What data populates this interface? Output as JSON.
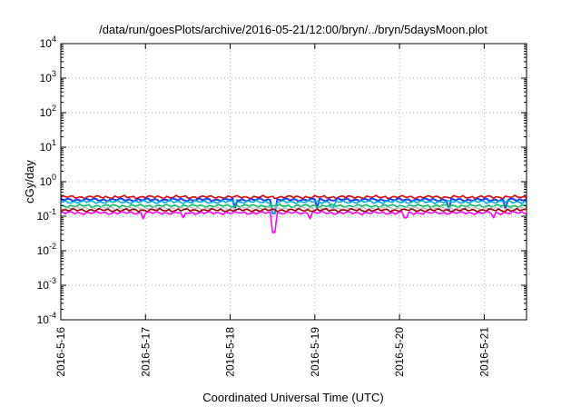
{
  "chart_data": {
    "type": "line",
    "title": "/data/run/goesPlots/archive/2016-05-21/12:00/bryn/../bryn/5daysMoon.plot",
    "xlabel": "Coordinated Universal Time (UTC)",
    "ylabel": "cGy/day",
    "yscale": "log",
    "ylim": [
      0.0001,
      10000
    ],
    "xlim": [
      "2016-05-16T00:00",
      "2016-05-21T12:00"
    ],
    "grid": true,
    "legend": "none",
    "x_ticks": [
      "2016-5-16",
      "2016-5-17",
      "2016-5-18",
      "2016-5-19",
      "2016-5-20",
      "2016-5-21"
    ],
    "y_ticks": [
      {
        "value": 0.0001,
        "base": "10",
        "exp": "-4"
      },
      {
        "value": 0.001,
        "base": "10",
        "exp": "-3"
      },
      {
        "value": 0.01,
        "base": "10",
        "exp": "-2"
      },
      {
        "value": 0.1,
        "base": "10",
        "exp": "-1"
      },
      {
        "value": 1,
        "base": "10",
        "exp": "0"
      },
      {
        "value": 10,
        "base": "10",
        "exp": "1"
      },
      {
        "value": 100,
        "base": "10",
        "exp": "2"
      },
      {
        "value": 1000,
        "base": "10",
        "exp": "3"
      },
      {
        "value": 10000,
        "base": "10",
        "exp": "4"
      }
    ],
    "series": [
      {
        "color": "#e00000",
        "base": 0.36,
        "dips": []
      },
      {
        "color": "#2040ff",
        "base": 0.3,
        "dips": [
          [
            "2016-05-18T01:10",
            0.16
          ],
          [
            "2016-05-18T12:20",
            0.12
          ],
          [
            "2016-05-19T00:40",
            0.17
          ],
          [
            "2016-05-20T14:00",
            0.15
          ],
          [
            "2016-05-21T06:00",
            0.16
          ]
        ]
      },
      {
        "color": "#00b0e0",
        "base": 0.26,
        "dips": [
          [
            "2016-05-18T12:20",
            0.12
          ],
          [
            "2016-05-19T05:00",
            0.18
          ]
        ]
      },
      {
        "color": "#00c060",
        "base": 0.2,
        "dips": []
      },
      {
        "color": "#c0c0c0",
        "base": 0.17,
        "dips": []
      },
      {
        "color": "#a00000",
        "base": 0.15,
        "dips": []
      },
      {
        "color": "#ff00ff",
        "base": 0.125,
        "dips": [
          [
            "2016-05-16T23:20",
            0.085
          ],
          [
            "2016-05-17T10:30",
            0.09
          ],
          [
            "2016-05-18T12:20",
            0.034
          ],
          [
            "2016-05-18T22:50",
            0.085
          ],
          [
            "2016-05-20T01:40",
            0.09
          ],
          [
            "2016-05-21T02:30",
            0.09
          ]
        ]
      }
    ]
  }
}
